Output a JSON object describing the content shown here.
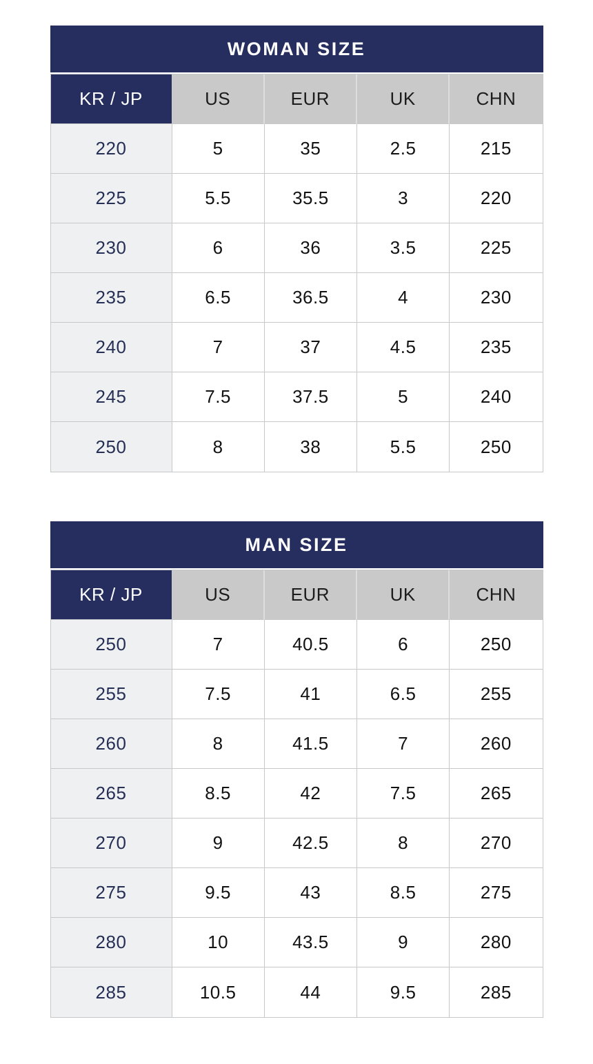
{
  "colors": {
    "navy": "#252e5f",
    "header_gray": "#c9c9ca",
    "first_column_bg": "#eef0f1",
    "border": "#c6c8ca",
    "banner_text": "#ffffff",
    "data_text": "#121212",
    "first_column_text": "#262f55"
  },
  "chart_data": [
    {
      "type": "table",
      "title": "WOMAN SIZE",
      "columns": [
        "KR / JP",
        "US",
        "EUR",
        "UK",
        "CHN"
      ],
      "rows": [
        [
          "220",
          "5",
          "35",
          "2.5",
          "215"
        ],
        [
          "225",
          "5.5",
          "35.5",
          "3",
          "220"
        ],
        [
          "230",
          "6",
          "36",
          "3.5",
          "225"
        ],
        [
          "235",
          "6.5",
          "36.5",
          "4",
          "230"
        ],
        [
          "240",
          "7",
          "37",
          "4.5",
          "235"
        ],
        [
          "245",
          "7.5",
          "37.5",
          "5",
          "240"
        ],
        [
          "250",
          "8",
          "38",
          "5.5",
          "250"
        ]
      ]
    },
    {
      "type": "table",
      "title": "MAN SIZE",
      "columns": [
        "KR / JP",
        "US",
        "EUR",
        "UK",
        "CHN"
      ],
      "rows": [
        [
          "250",
          "7",
          "40.5",
          "6",
          "250"
        ],
        [
          "255",
          "7.5",
          "41",
          "6.5",
          "255"
        ],
        [
          "260",
          "8",
          "41.5",
          "7",
          "260"
        ],
        [
          "265",
          "8.5",
          "42",
          "7.5",
          "265"
        ],
        [
          "270",
          "9",
          "42.5",
          "8",
          "270"
        ],
        [
          "275",
          "9.5",
          "43",
          "8.5",
          "275"
        ],
        [
          "280",
          "10",
          "43.5",
          "9",
          "280"
        ],
        [
          "285",
          "10.5",
          "44",
          "9.5",
          "285"
        ]
      ]
    }
  ]
}
